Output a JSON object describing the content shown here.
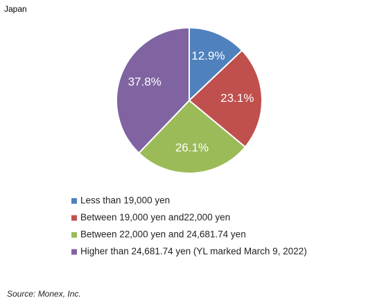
{
  "chart_data": {
    "type": "pie",
    "title": "Japan",
    "categories": [
      "Less than 19,000 yen",
      "Between 19,000 yen and22,000 yen",
      "Between 22,000 yen and 24,681.74 yen",
      "Higher than 24,681.74 yen (YL marked March 9, 2022)"
    ],
    "values": [
      12.9,
      23.1,
      26.1,
      37.8
    ],
    "value_labels": [
      "12.9%",
      "23.1%",
      "26.1%",
      "37.8%"
    ],
    "colors": [
      "#4f81bd",
      "#c0504d",
      "#9bbb59",
      "#8064a2"
    ],
    "source": "Source: Monex, Inc."
  }
}
